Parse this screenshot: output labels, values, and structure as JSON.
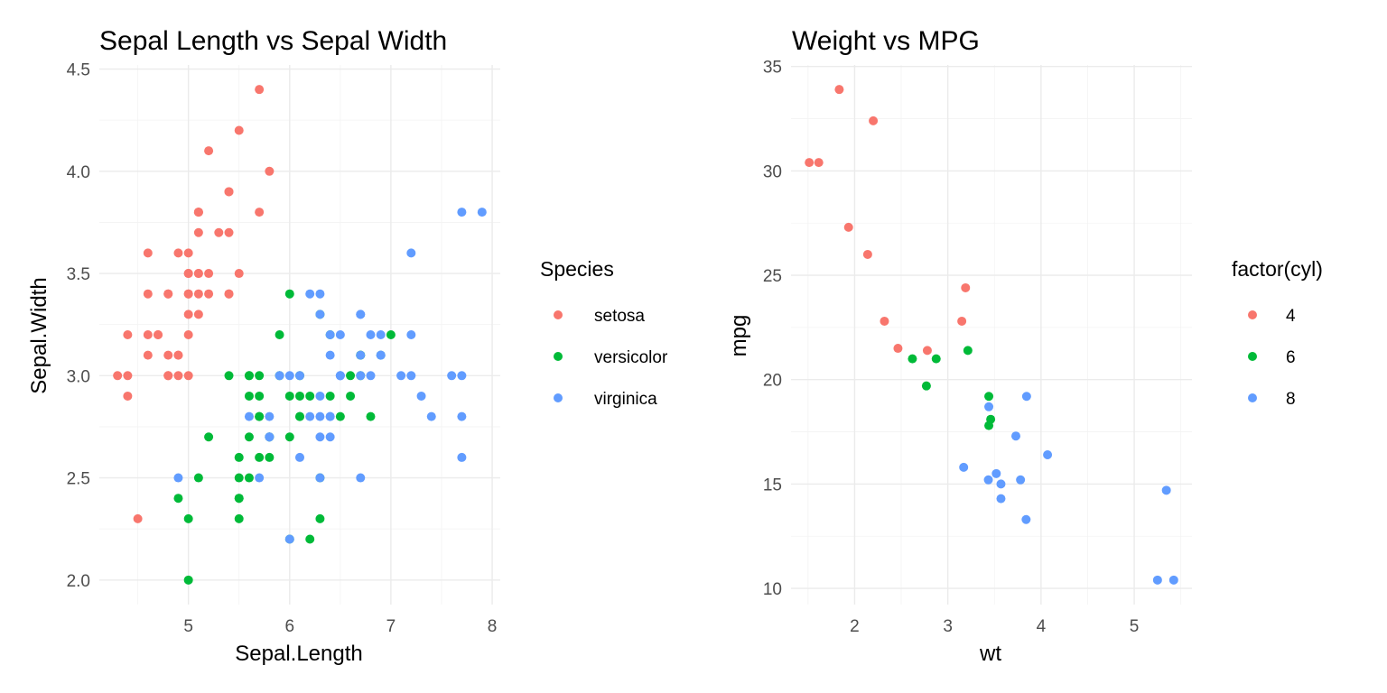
{
  "chart_data": [
    {
      "type": "scatter",
      "title": "Sepal Length vs Sepal Width",
      "xlabel": "Sepal.Length",
      "ylabel": "Sepal.Width",
      "xlim": [
        4.3,
        7.9
      ],
      "ylim": [
        2.0,
        4.4
      ],
      "xticks": [
        5,
        6,
        7,
        8
      ],
      "xtick_labels": [
        "5",
        "6",
        "7",
        "8"
      ],
      "yticks": [
        2.0,
        2.5,
        3.0,
        3.5,
        4.0,
        4.5
      ],
      "ytick_labels": [
        "2.0",
        "2.5",
        "3.0",
        "3.5",
        "4.0",
        "4.5"
      ],
      "grid": true,
      "legend": {
        "title": "Species",
        "placement": "right"
      },
      "series": [
        {
          "name": "setosa",
          "color": "#F8766D",
          "points": [
            [
              5.1,
              3.5
            ],
            [
              4.9,
              3.0
            ],
            [
              4.7,
              3.2
            ],
            [
              4.6,
              3.1
            ],
            [
              5.0,
              3.6
            ],
            [
              5.4,
              3.9
            ],
            [
              4.6,
              3.4
            ],
            [
              5.0,
              3.4
            ],
            [
              4.4,
              2.9
            ],
            [
              4.9,
              3.1
            ],
            [
              5.4,
              3.7
            ],
            [
              4.8,
              3.4
            ],
            [
              4.8,
              3.0
            ],
            [
              4.3,
              3.0
            ],
            [
              5.8,
              4.0
            ],
            [
              5.7,
              4.4
            ],
            [
              5.4,
              3.9
            ],
            [
              5.1,
              3.5
            ],
            [
              5.7,
              3.8
            ],
            [
              5.1,
              3.8
            ],
            [
              5.4,
              3.4
            ],
            [
              5.1,
              3.7
            ],
            [
              4.6,
              3.6
            ],
            [
              5.1,
              3.3
            ],
            [
              4.8,
              3.4
            ],
            [
              5.0,
              3.0
            ],
            [
              5.0,
              3.4
            ],
            [
              5.2,
              3.5
            ],
            [
              5.2,
              3.4
            ],
            [
              4.7,
              3.2
            ],
            [
              4.8,
              3.1
            ],
            [
              5.4,
              3.4
            ],
            [
              5.2,
              4.1
            ],
            [
              5.5,
              4.2
            ],
            [
              4.9,
              3.1
            ],
            [
              5.0,
              3.2
            ],
            [
              5.5,
              3.5
            ],
            [
              4.9,
              3.6
            ],
            [
              4.4,
              3.0
            ],
            [
              5.1,
              3.4
            ],
            [
              5.0,
              3.5
            ],
            [
              4.5,
              2.3
            ],
            [
              4.4,
              3.2
            ],
            [
              5.0,
              3.5
            ],
            [
              5.1,
              3.8
            ],
            [
              4.8,
              3.0
            ],
            [
              5.1,
              3.8
            ],
            [
              4.6,
              3.2
            ],
            [
              5.3,
              3.7
            ],
            [
              5.0,
              3.3
            ]
          ]
        },
        {
          "name": "versicolor",
          "color": "#00BA38",
          "points": [
            [
              7.0,
              3.2
            ],
            [
              6.4,
              3.2
            ],
            [
              6.9,
              3.1
            ],
            [
              5.5,
              2.3
            ],
            [
              6.5,
              2.8
            ],
            [
              5.7,
              2.8
            ],
            [
              6.3,
              3.3
            ],
            [
              4.9,
              2.4
            ],
            [
              6.6,
              2.9
            ],
            [
              5.2,
              2.7
            ],
            [
              5.0,
              2.0
            ],
            [
              5.9,
              3.0
            ],
            [
              6.0,
              2.2
            ],
            [
              6.1,
              2.9
            ],
            [
              5.6,
              2.9
            ],
            [
              6.7,
              3.1
            ],
            [
              5.6,
              3.0
            ],
            [
              5.8,
              2.7
            ],
            [
              6.2,
              2.2
            ],
            [
              5.6,
              2.5
            ],
            [
              5.9,
              3.2
            ],
            [
              6.1,
              2.8
            ],
            [
              6.3,
              2.5
            ],
            [
              6.1,
              2.8
            ],
            [
              6.4,
              2.9
            ],
            [
              6.6,
              3.0
            ],
            [
              6.8,
              2.8
            ],
            [
              6.7,
              3.0
            ],
            [
              6.0,
              2.9
            ],
            [
              5.7,
              2.6
            ],
            [
              5.5,
              2.4
            ],
            [
              5.5,
              2.4
            ],
            [
              5.8,
              2.7
            ],
            [
              6.0,
              2.7
            ],
            [
              5.4,
              3.0
            ],
            [
              6.0,
              3.4
            ],
            [
              6.7,
              3.1
            ],
            [
              6.3,
              2.3
            ],
            [
              5.6,
              3.0
            ],
            [
              5.5,
              2.5
            ],
            [
              5.5,
              2.6
            ],
            [
              6.1,
              3.0
            ],
            [
              5.8,
              2.6
            ],
            [
              5.0,
              2.3
            ],
            [
              5.6,
              2.7
            ],
            [
              5.7,
              3.0
            ],
            [
              5.7,
              2.9
            ],
            [
              6.2,
              2.9
            ],
            [
              5.1,
              2.5
            ],
            [
              5.7,
              2.8
            ]
          ]
        },
        {
          "name": "virginica",
          "color": "#619CFF",
          "points": [
            [
              6.3,
              3.3
            ],
            [
              5.8,
              2.7
            ],
            [
              7.1,
              3.0
            ],
            [
              6.3,
              2.9
            ],
            [
              6.5,
              3.0
            ],
            [
              7.6,
              3.0
            ],
            [
              4.9,
              2.5
            ],
            [
              7.3,
              2.9
            ],
            [
              6.7,
              2.5
            ],
            [
              7.2,
              3.6
            ],
            [
              6.5,
              3.2
            ],
            [
              6.4,
              2.7
            ],
            [
              6.8,
              3.0
            ],
            [
              5.7,
              2.5
            ],
            [
              5.8,
              2.8
            ],
            [
              6.4,
              3.2
            ],
            [
              6.5,
              3.0
            ],
            [
              7.7,
              3.8
            ],
            [
              7.7,
              2.6
            ],
            [
              6.0,
              2.2
            ],
            [
              6.9,
              3.2
            ],
            [
              5.6,
              2.8
            ],
            [
              7.7,
              2.8
            ],
            [
              6.3,
              2.7
            ],
            [
              6.7,
              3.3
            ],
            [
              7.2,
              3.2
            ],
            [
              6.2,
              2.8
            ],
            [
              6.1,
              3.0
            ],
            [
              6.4,
              2.8
            ],
            [
              7.2,
              3.0
            ],
            [
              7.4,
              2.8
            ],
            [
              7.9,
              3.8
            ],
            [
              6.4,
              2.8
            ],
            [
              6.3,
              2.8
            ],
            [
              6.1,
              2.6
            ],
            [
              7.7,
              3.0
            ],
            [
              6.3,
              3.4
            ],
            [
              6.4,
              3.1
            ],
            [
              6.0,
              3.0
            ],
            [
              6.9,
              3.1
            ],
            [
              6.7,
              3.1
            ],
            [
              6.9,
              3.1
            ],
            [
              5.8,
              2.7
            ],
            [
              6.8,
              3.2
            ],
            [
              6.7,
              3.3
            ],
            [
              6.7,
              3.0
            ],
            [
              6.3,
              2.5
            ],
            [
              6.5,
              3.0
            ],
            [
              6.2,
              3.4
            ],
            [
              5.9,
              3.0
            ]
          ]
        }
      ]
    },
    {
      "type": "scatter",
      "title": "Weight vs MPG",
      "xlabel": "wt",
      "ylabel": "mpg",
      "xlim": [
        1.513,
        5.424
      ],
      "ylim": [
        10.4,
        33.9
      ],
      "xticks": [
        2,
        3,
        4,
        5
      ],
      "xtick_labels": [
        "2",
        "3",
        "4",
        "5"
      ],
      "yticks": [
        10,
        15,
        20,
        25,
        30,
        35
      ],
      "ytick_labels": [
        "10",
        "15",
        "20",
        "25",
        "30",
        "35"
      ],
      "grid": true,
      "legend": {
        "title": "factor(cyl)",
        "placement": "right"
      },
      "series": [
        {
          "name": "4",
          "color": "#F8766D",
          "points": [
            [
              2.32,
              22.8
            ],
            [
              3.19,
              24.4
            ],
            [
              3.15,
              22.8
            ],
            [
              2.2,
              32.4
            ],
            [
              1.615,
              30.4
            ],
            [
              1.835,
              33.9
            ],
            [
              2.465,
              21.5
            ],
            [
              1.935,
              27.3
            ],
            [
              2.14,
              26.0
            ],
            [
              1.513,
              30.4
            ],
            [
              2.78,
              21.4
            ]
          ]
        },
        {
          "name": "6",
          "color": "#00BA38",
          "points": [
            [
              2.62,
              21.0
            ],
            [
              2.875,
              21.0
            ],
            [
              3.215,
              21.4
            ],
            [
              3.46,
              18.1
            ],
            [
              3.44,
              19.2
            ],
            [
              3.44,
              17.8
            ],
            [
              2.77,
              19.7
            ]
          ]
        },
        {
          "name": "8",
          "color": "#619CFF",
          "points": [
            [
              3.44,
              18.7
            ],
            [
              3.57,
              14.3
            ],
            [
              4.07,
              16.4
            ],
            [
              3.73,
              17.3
            ],
            [
              3.78,
              15.2
            ],
            [
              5.25,
              10.4
            ],
            [
              5.424,
              10.4
            ],
            [
              5.345,
              14.7
            ],
            [
              3.52,
              15.5
            ],
            [
              3.435,
              15.2
            ],
            [
              3.84,
              13.3
            ],
            [
              3.845,
              19.2
            ],
            [
              3.17,
              15.8
            ],
            [
              3.57,
              15.0
            ]
          ]
        }
      ]
    }
  ]
}
